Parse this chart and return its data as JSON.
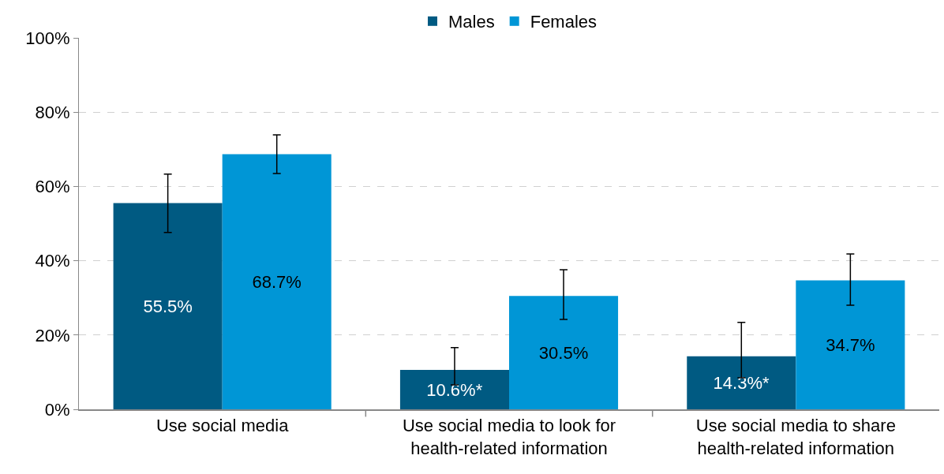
{
  "chart_data": {
    "type": "bar",
    "categories": [
      "Use social media",
      "Use social media to look for health-related information",
      "Use social media to share health-related information"
    ],
    "series": [
      {
        "name": "Males",
        "color": "#005a82",
        "values": [
          55.5,
          10.6,
          14.3
        ],
        "value_labels": [
          "55.5%",
          "10.6%*",
          "14.3%*"
        ],
        "errors": [
          [
            47.6,
            63.3
          ],
          [
            6.6,
            16.6
          ],
          [
            8.5,
            23.4
          ]
        ]
      },
      {
        "name": "Females",
        "color": "#0096d6",
        "values": [
          68.7,
          30.5,
          34.7
        ],
        "value_labels": [
          "68.7%",
          "30.5%",
          "34.7%"
        ],
        "errors": [
          [
            63.5,
            73.9
          ],
          [
            24.2,
            37.6
          ],
          [
            28.0,
            41.8
          ]
        ]
      }
    ],
    "ylim": [
      0,
      100
    ],
    "yticks": [
      {
        "value": 0,
        "label": "0%"
      },
      {
        "value": 20,
        "label": "20%"
      },
      {
        "value": 40,
        "label": "40%"
      },
      {
        "value": 60,
        "label": "60%"
      },
      {
        "value": 80,
        "label": "80%"
      },
      {
        "value": 100,
        "label": "100%"
      }
    ],
    "grid": "y",
    "legend": "top"
  }
}
